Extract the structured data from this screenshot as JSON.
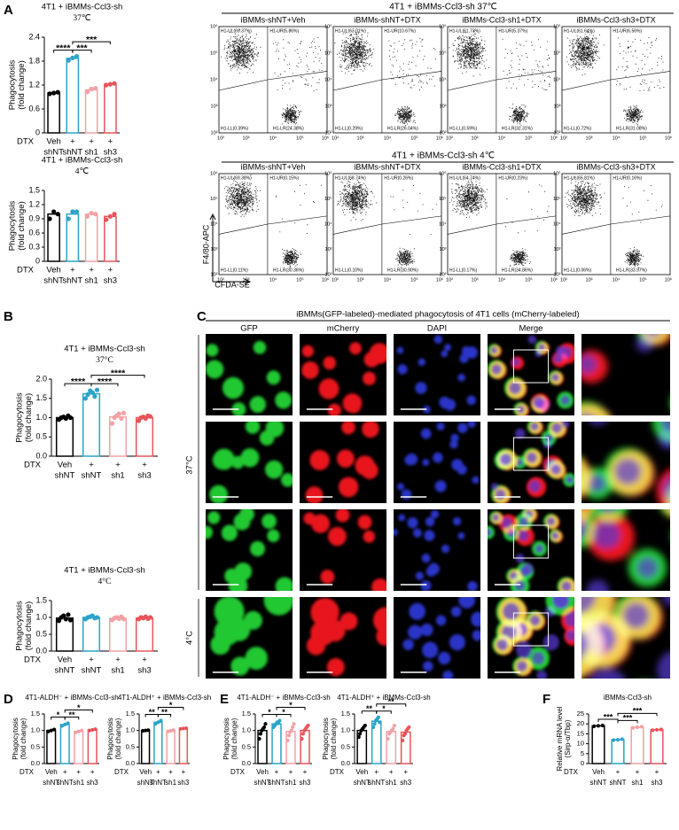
{
  "panels": [
    "A",
    "B",
    "C",
    "D",
    "E",
    "F"
  ],
  "chart_data": [
    {
      "type": "bar",
      "title": "4T1 + iBMMs-Ccl3-sh",
      "subtitle": "37℃",
      "ylabel": [
        "Phagocytosis",
        "(fold change)"
      ],
      "row_label": "DTX",
      "treatments": [
        "Veh",
        "+",
        "+",
        "+"
      ],
      "categories": [
        "shNT",
        "shNT",
        "sh1",
        "sh3"
      ],
      "values": [
        1.0,
        1.87,
        1.08,
        1.22
      ],
      "points": [
        [
          0.98,
          1.0,
          1.02
        ],
        [
          1.82,
          1.88,
          1.92
        ],
        [
          1.03,
          1.1,
          1.12
        ],
        [
          1.2,
          1.22,
          1.24
        ]
      ],
      "colors": [
        "#000000",
        "#2ba3c7",
        "#f2a1a6",
        "#e8545a"
      ],
      "ylim": [
        0,
        2.4
      ],
      "yticks": [
        0,
        0.6,
        1.2,
        1.8,
        2.4
      ],
      "significance": [
        {
          "pair": [
            0,
            1
          ],
          "label": "****"
        },
        {
          "pair": [
            1,
            2
          ],
          "label": "***"
        },
        {
          "pair": [
            1,
            3
          ],
          "label": "***"
        }
      ]
    },
    {
      "type": "bar",
      "title": "4T1 + iBMMs-Ccl3-sh",
      "subtitle": "4℃",
      "ylabel": [
        "Phagocytosis",
        "(fold change)"
      ],
      "row_label": "DTX",
      "treatments": [
        "Veh",
        "+",
        "+",
        "+"
      ],
      "categories": [
        "shNT",
        "shNT",
        "sh1",
        "sh3"
      ],
      "values": [
        1.0,
        1.0,
        1.0,
        0.95
      ],
      "points": [
        [
          0.9,
          1.05,
          1.0
        ],
        [
          0.9,
          1.05,
          1.05
        ],
        [
          0.95,
          1.02,
          1.0
        ],
        [
          0.88,
          0.95,
          1.0
        ]
      ],
      "colors": [
        "#000000",
        "#2ba3c7",
        "#f2a1a6",
        "#e8545a"
      ],
      "ylim": [
        0,
        1.5
      ],
      "yticks": [
        0,
        0.3,
        0.6,
        0.9,
        1.2,
        1.5
      ],
      "significance": []
    },
    {
      "type": "bar",
      "title": "4T1 + iBMMs-Ccl3-sh",
      "subtitle": "37°C",
      "ylabel": [
        "Phagocytosis",
        "(fold change)"
      ],
      "row_label": "DTX",
      "treatments": [
        "Veh",
        "+",
        "+",
        "+"
      ],
      "categories": [
        "shNT",
        "shNT",
        "sh1",
        "sh3"
      ],
      "values": [
        1.0,
        1.62,
        1.02,
        1.0
      ],
      "points": [
        [
          0.95,
          1.0,
          1.02,
          0.98,
          1.05,
          1.0
        ],
        [
          1.5,
          1.6,
          1.7,
          1.65,
          1.55,
          1.72
        ],
        [
          0.85,
          1.0,
          1.05,
          1.1,
          0.98,
          1.12
        ],
        [
          0.92,
          1.0,
          1.02,
          0.98,
          1.05,
          1.03
        ]
      ],
      "colors": [
        "#000000",
        "#2ba3c7",
        "#f2a1a6",
        "#e8545a"
      ],
      "ylim": [
        0,
        2
      ],
      "yticks": [
        {
          "value": 0,
          "label": "0.0"
        },
        0.5,
        {
          "value": 1,
          "label": "1.0"
        },
        1.5,
        {
          "value": 2,
          "label": "2.0"
        }
      ],
      "significance": [
        {
          "pair": [
            0,
            1
          ],
          "label": "****"
        },
        {
          "pair": [
            1,
            2
          ],
          "label": "****"
        },
        {
          "pair": [
            1,
            3
          ],
          "label": "****"
        }
      ]
    },
    {
      "type": "bar",
      "title": "4T1 + iBMMs-Ccl3-sh",
      "subtitle": "4°C",
      "ylabel": [
        "Phagocytosis",
        "(fold change)"
      ],
      "row_label": "DTX",
      "treatments": [
        "Veh",
        "+",
        "+",
        "+"
      ],
      "categories": [
        "shNT",
        "shNT",
        "sh1",
        "sh3"
      ],
      "values": [
        0.98,
        1.0,
        0.97,
        0.98
      ],
      "points": [
        [
          0.9,
          1.0,
          1.05,
          0.95,
          1.08,
          0.92
        ],
        [
          0.95,
          1.0,
          1.02,
          1.05,
          0.98,
          1.0
        ],
        [
          0.92,
          0.98,
          1.0,
          0.96,
          1.02,
          0.95
        ],
        [
          0.95,
          1.0,
          0.98,
          1.02,
          0.96,
          1.0
        ]
      ],
      "colors": [
        "#000000",
        "#2ba3c7",
        "#f2a1a6",
        "#e8545a"
      ],
      "ylim": [
        0,
        1.5
      ],
      "yticks": [
        {
          "value": 0,
          "label": "0.0"
        },
        0.5,
        {
          "value": 1,
          "label": "1.0"
        },
        1.5
      ],
      "significance": []
    },
    {
      "type": "bar",
      "title": "4T1-ALDH⁻ + iBMMs-Ccl3-sh",
      "ylabel": [
        "Phagocytosis",
        "(fold change)"
      ],
      "row_label": "DTX",
      "treatments": [
        "Veh",
        "+",
        "+",
        "+"
      ],
      "categories": [
        "shNT",
        "shNT",
        "sh1",
        "sh3"
      ],
      "values": [
        1.0,
        1.18,
        0.97,
        1.02
      ],
      "points": [
        [
          0.97,
          1.0,
          1.03
        ],
        [
          1.14,
          1.18,
          1.22
        ],
        [
          0.94,
          0.97,
          1.0
        ],
        [
          1.0,
          1.02,
          1.04
        ]
      ],
      "colors": [
        "#000000",
        "#2ba3c7",
        "#f2a1a6",
        "#e8545a"
      ],
      "ylim": [
        0,
        1.5
      ],
      "yticks": [
        {
          "value": 0,
          "label": "0.0"
        },
        0.5,
        {
          "value": 1,
          "label": "1.0"
        },
        1.5
      ],
      "significance": [
        {
          "pair": [
            0,
            1
          ],
          "label": "*"
        },
        {
          "pair": [
            1,
            2
          ],
          "label": "**"
        },
        {
          "pair": [
            1,
            3
          ],
          "label": "*"
        }
      ]
    },
    {
      "type": "bar",
      "title": "4T1-ALDH⁺ + iBMMs-Ccl3-sh",
      "ylabel": [
        "Phagocytosis",
        "(fold change)"
      ],
      "row_label": "DTX",
      "treatments": [
        "Veh",
        "+",
        "+",
        "+"
      ],
      "categories": [
        "shNT",
        "shNT",
        "sh1",
        "sh3"
      ],
      "values": [
        1.0,
        1.25,
        0.99,
        1.06
      ],
      "points": [
        [
          0.99,
          1.0,
          1.01
        ],
        [
          1.2,
          1.25,
          1.3
        ],
        [
          0.97,
          0.99,
          1.01
        ],
        [
          1.05,
          1.06,
          1.07
        ]
      ],
      "colors": [
        "#000000",
        "#2ba3c7",
        "#f2a1a6",
        "#e8545a"
      ],
      "ylim": [
        0,
        1.5
      ],
      "yticks": [
        {
          "value": 0,
          "label": "0.0"
        },
        0.5,
        {
          "value": 1,
          "label": "1.0"
        },
        1.5
      ],
      "significance": [
        {
          "pair": [
            0,
            1
          ],
          "label": "**"
        },
        {
          "pair": [
            1,
            2
          ],
          "label": "**"
        },
        {
          "pair": [
            1,
            3
          ],
          "label": "*"
        }
      ]
    },
    {
      "type": "bar",
      "title": "4T1-ALDH⁻ + iBMMs-Ccl3-sh",
      "ylabel": [
        "Phagocytosis",
        "(fold change)"
      ],
      "row_label": "DTX",
      "treatments": [
        "Veh",
        "+",
        "+",
        "+"
      ],
      "categories": [
        "shNT",
        "shNT",
        "sh1",
        "sh3"
      ],
      "values": [
        1.0,
        1.2,
        0.97,
        1.0
      ],
      "points": [
        [
          0.75,
          0.9,
          1.0,
          1.05,
          1.1,
          1.2
        ],
        [
          1.1,
          1.15,
          1.2,
          1.25,
          1.22,
          1.3
        ],
        [
          0.7,
          0.85,
          0.95,
          1.0,
          1.1,
          1.2
        ],
        [
          0.75,
          0.9,
          1.0,
          1.05,
          1.1,
          1.15
        ]
      ],
      "colors": [
        "#000000",
        "#2ba3c7",
        "#f2a1a6",
        "#e8545a"
      ],
      "ylim": [
        0,
        1.5
      ],
      "yticks": [
        {
          "value": 0,
          "label": "0.0"
        },
        0.5,
        {
          "value": 1,
          "label": "1.0"
        },
        1.5
      ],
      "significance": [
        {
          "pair": [
            0,
            1
          ],
          "label": "*"
        },
        {
          "pair": [
            1,
            2
          ],
          "label": "*"
        },
        {
          "pair": [
            1,
            3
          ],
          "label": "*"
        }
      ]
    },
    {
      "type": "bar",
      "title": "4T1-ALDH⁺ + iBMMs-Ccl3-sh",
      "ylabel": [
        "Phagocytosis",
        "(fold change)"
      ],
      "row_label": "DTX",
      "treatments": [
        "Veh",
        "+",
        "+",
        "+"
      ],
      "categories": [
        "shNT",
        "shNT",
        "sh1",
        "sh3"
      ],
      "values": [
        1.0,
        1.28,
        0.97,
        0.95
      ],
      "points": [
        [
          0.8,
          0.9,
          1.0,
          1.05,
          1.1,
          1.15
        ],
        [
          1.1,
          1.2,
          1.3,
          1.35,
          1.4,
          1.25
        ],
        [
          0.75,
          0.9,
          0.95,
          1.0,
          1.05,
          1.15
        ],
        [
          0.7,
          0.85,
          0.9,
          1.0,
          1.05,
          1.1
        ]
      ],
      "colors": [
        "#000000",
        "#2ba3c7",
        "#f2a1a6",
        "#e8545a"
      ],
      "ylim": [
        0,
        1.5
      ],
      "yticks": [
        {
          "value": 0,
          "label": "0.0"
        },
        0.5,
        {
          "value": 1,
          "label": "1.0"
        },
        1.5
      ],
      "significance": [
        {
          "pair": [
            0,
            1
          ],
          "label": "**"
        },
        {
          "pair": [
            1,
            2
          ],
          "label": "*"
        },
        {
          "pair": [
            1,
            3
          ],
          "label": "**"
        }
      ]
    },
    {
      "type": "bar",
      "title": "iBMMs-Ccl3-sh",
      "ylabel": [
        "Relative mRNA level",
        "(Sirp-α/Tbp)"
      ],
      "row_label": "DTX",
      "treatments": [
        "Veh",
        "+",
        "+",
        "+"
      ],
      "categories": [
        "shNT",
        "shNT",
        "sh1",
        "sh3"
      ],
      "values": [
        19,
        12,
        18.3,
        17
      ],
      "points": [
        [
          18.8,
          19,
          19.2
        ],
        [
          11.8,
          12,
          12.3
        ],
        [
          18,
          18.3,
          18.6
        ],
        [
          16.8,
          17,
          17.2
        ]
      ],
      "colors": [
        "#000000",
        "#2ba3c7",
        "#f2a1a6",
        "#e8545a"
      ],
      "ylim": [
        0,
        25
      ],
      "yticks": [
        0,
        5,
        10,
        15,
        20,
        25
      ],
      "significance": [
        {
          "pair": [
            0,
            1
          ],
          "label": "***"
        },
        {
          "pair": [
            1,
            2
          ],
          "label": "***"
        },
        {
          "pair": [
            1,
            3
          ],
          "label": "***"
        }
      ]
    }
  ],
  "flow": {
    "headers": [
      "4T1 + iBMMs-Ccl3-sh   37℃",
      "4T1 + iBMMs-Ccl3-sh   4℃"
    ],
    "titles": [
      "iBMMs-shNT+Veh",
      "iBMMs-shNT+DTX",
      "iBMMs-Ccl3-sh1+DTX",
      "iBMMs-Ccl3-sh3+DTX"
    ],
    "quadrants": [
      [
        [
          "H1-UL(69.37%)",
          "H1-UR(5.86%)",
          "H1-LL(0.39%)",
          "H1-LR(24.38%)"
        ],
        [
          "H1-UL(63.01%)",
          "H1-UR(10.67%)",
          "H1-LL(0.29%)",
          "H1-LR(26.04%)"
        ],
        [
          "H1-UL(61.73%)",
          "H1-UR(5.37%)",
          "H1-LL(0.59%)",
          "H1-LR(32.31%)"
        ],
        [
          "H1-UL(61.64%)",
          "H1-UR(6.56%)",
          "H1-LL(0.72%)",
          "H1-LR(31.08%)"
        ]
      ],
      [
        [
          "H1-UL(69.38%)",
          "H1-UR(0.15%)",
          "H1-LL(0.11%)",
          "H1-LR(30.36%)"
        ],
        [
          "H1-UL(68.74%)",
          "H1-UR(0.26%)",
          "H1-LL(0.10%)",
          "H1-LR(30.90%)"
        ],
        [
          "H1-UL(64.74%)",
          "H1-UR(0.23%)",
          "H1-LL(0.17%)",
          "H1-LR(34.86%)"
        ],
        [
          "H1-UL(65.81%)",
          "H1-UR(0.16%)",
          "H1-LL(0.06%)",
          "H1-LR(33.97%)"
        ]
      ]
    ],
    "ticks": [
      "10²",
      "10³",
      "10⁴",
      "10⁵",
      "10⁶"
    ],
    "ylabel": "F4/80-APC",
    "xlabel": "CFDA-SE"
  },
  "microscopy": {
    "header": "iBMMs(GFP-labeled)-mediated phagocytosis of 4T1 cells (mCherry-labeled)",
    "columns": [
      "GFP",
      "mCherry",
      "DAPI",
      "Merge"
    ],
    "rows": [
      "37°C",
      "4°C"
    ]
  }
}
